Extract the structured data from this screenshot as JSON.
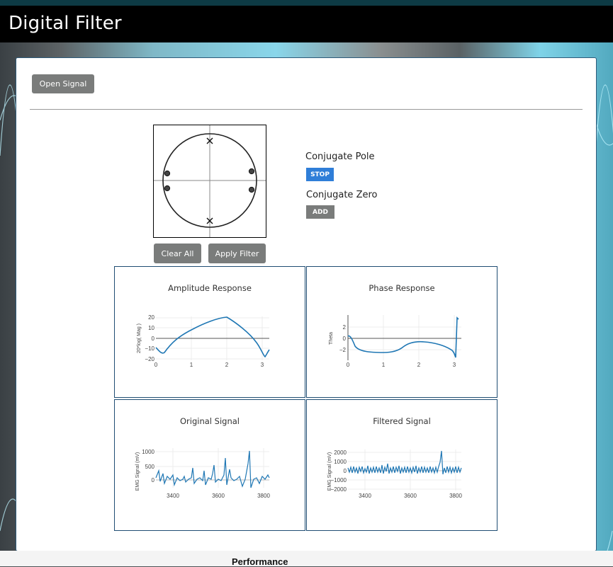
{
  "header": {
    "title": "Digital Filter"
  },
  "toolbar": {
    "open_label": "Open Signal"
  },
  "controls": {
    "clear_label": "Clear All",
    "apply_label": "Apply Filter",
    "pole_label": "Conjugate Pole",
    "pole_button": "STOP",
    "zero_label": "Conjugate Zero",
    "zero_button": "ADD"
  },
  "colors": {
    "accent_blue": "#2f7ed8",
    "gray_button": "#7a7c7b",
    "plot_line": "#1f77b4"
  },
  "panels": {
    "amplitude": {
      "title": "Amplitude Response",
      "ylabel": "20*log( Mag )",
      "yticks": [
        "20",
        "10",
        "0",
        "−10",
        "−20"
      ],
      "xticks": [
        "0",
        "1",
        "2",
        "3"
      ]
    },
    "phase": {
      "title": "Phase Response",
      "ylabel": "Theta",
      "yticks": [
        "2",
        "0",
        "−2"
      ],
      "xticks": [
        "0",
        "1",
        "2",
        "3"
      ]
    },
    "original": {
      "title": "Original Signal",
      "ylabel": "EMG Signal (mV)",
      "yticks": [
        "1000",
        "500",
        "0"
      ],
      "xticks": [
        "3400",
        "3600",
        "3800"
      ]
    },
    "filtered": {
      "title": "Filtered Signal",
      "ylabel": "EMG Signal (mV)",
      "yticks": [
        "2000",
        "1000",
        "0",
        "−1000",
        "−2000"
      ],
      "xticks": [
        "3400",
        "3600",
        "3800"
      ]
    }
  },
  "footer": {
    "text": "Performance"
  }
}
